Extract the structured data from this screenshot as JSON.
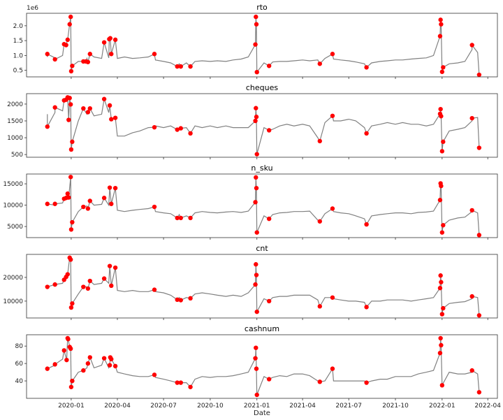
{
  "chart_data": {
    "type": "line",
    "xlabel": "Date",
    "x_ticks": [
      "2020-01",
      "2020-04",
      "2020-07",
      "2020-10",
      "2021-01",
      "2021-04",
      "2021-07",
      "2021-10",
      "2022-01",
      "2022-04"
    ],
    "xlim": [
      "2019-10-05",
      "2022-04-20"
    ],
    "grid": false,
    "line_color": "#808080",
    "anomaly_color": "#ff0000",
    "dates": [
      "2019-11-15",
      "2019-11-30",
      "2019-12-15",
      "2020-01-15",
      "2020-02-01",
      "2020-02-15",
      "2020-03-01",
      "2020-03-15",
      "2020-04-01",
      "2020-04-15",
      "2020-05-01",
      "2020-05-15",
      "2020-06-01",
      "2020-06-15",
      "2020-07-01",
      "2020-07-15",
      "2020-08-01",
      "2020-08-15",
      "2020-09-01",
      "2020-09-15",
      "2020-10-01",
      "2020-10-15",
      "2020-11-01",
      "2020-11-15",
      "2020-12-01",
      "2020-12-15",
      "2021-01-15",
      "2021-02-01",
      "2021-02-15",
      "2021-03-01",
      "2021-03-15",
      "2021-04-01",
      "2021-04-15",
      "2021-05-01",
      "2021-05-15",
      "2021-06-01",
      "2021-06-15",
      "2021-07-01",
      "2021-07-15",
      "2021-08-01",
      "2021-08-15",
      "2021-09-01",
      "2021-09-15",
      "2021-10-01",
      "2021-10-15",
      "2021-11-01",
      "2021-11-15",
      "2021-12-01",
      "2021-12-15",
      "2022-01-15",
      "2022-02-01",
      "2022-02-15",
      "2022-03-01",
      "2022-03-12"
    ],
    "panels": [
      {
        "title": "rto",
        "offset_label": "1e6",
        "ylim": [
          0.28,
          2.42
        ],
        "y_ticks": [
          0.5,
          1.0,
          1.5,
          2.0
        ],
        "y_tick_labels": [
          "0.5",
          "1.0",
          "1.5",
          "2.0"
        ],
        "values": [
          0.95,
          0.92,
          1.0,
          0.8,
          0.9,
          0.95,
          0.9,
          0.92,
          0.9,
          0.95,
          0.9,
          0.92,
          0.95,
          0.85,
          0.8,
          0.75,
          0.72,
          0.75,
          0.8,
          0.82,
          0.8,
          0.82,
          0.8,
          0.85,
          0.88,
          0.95,
          0.75,
          0.78,
          0.8,
          0.8,
          0.82,
          0.85,
          0.82,
          0.85,
          0.9,
          0.88,
          0.85,
          0.82,
          0.78,
          0.72,
          0.75,
          0.8,
          0.82,
          0.85,
          0.85,
          0.88,
          0.9,
          0.92,
          1.0,
          0.72,
          0.75,
          0.8,
          1.2,
          1.1
        ],
        "anomalies": [
          [
            "2019-11-15",
            1.05
          ],
          [
            "2019-11-30",
            0.87
          ],
          [
            "2019-12-18",
            1.38
          ],
          [
            "2019-12-22",
            1.35
          ],
          [
            "2019-12-25",
            1.53
          ],
          [
            "2019-12-29",
            2.05
          ],
          [
            "2019-12-31",
            2.3
          ],
          [
            "2020-01-01",
            0.47
          ],
          [
            "2020-01-03",
            0.65
          ],
          [
            "2020-01-25",
            0.8
          ],
          [
            "2020-01-30",
            0.8
          ],
          [
            "2020-02-03",
            0.78
          ],
          [
            "2020-02-07",
            1.05
          ],
          [
            "2020-03-06",
            1.44
          ],
          [
            "2020-03-16",
            1.55
          ],
          [
            "2020-03-18",
            1.58
          ],
          [
            "2020-03-20",
            1.05
          ],
          [
            "2020-03-28",
            1.53
          ],
          [
            "2020-06-13",
            1.05
          ],
          [
            "2020-07-28",
            0.63
          ],
          [
            "2020-08-04",
            0.63
          ],
          [
            "2020-08-23",
            0.63
          ],
          [
            "2020-12-29",
            1.37
          ],
          [
            "2020-12-30",
            2.3
          ],
          [
            "2020-12-31",
            2.05
          ],
          [
            "2021-01-01",
            0.44
          ],
          [
            "2021-01-25",
            0.65
          ],
          [
            "2021-05-05",
            0.72
          ],
          [
            "2021-05-30",
            1.05
          ],
          [
            "2021-08-05",
            0.6
          ],
          [
            "2021-12-28",
            1.65
          ],
          [
            "2021-12-29",
            2.2
          ],
          [
            "2021-12-30",
            2.05
          ],
          [
            "2022-01-01",
            0.45
          ],
          [
            "2022-01-03",
            0.6
          ],
          [
            "2022-03-01",
            1.35
          ],
          [
            "2022-03-15",
            0.35
          ]
        ]
      },
      {
        "title": "cheques",
        "offset_label": "",
        "ylim": [
          420,
          2310
        ],
        "y_ticks": [
          500,
          1000,
          1500,
          2000
        ],
        "y_tick_labels": [
          "500",
          "1000",
          "1500",
          "2000"
        ],
        "values": [
          1700,
          1750,
          1800,
          1500,
          1700,
          1650,
          1700,
          1750,
          1050,
          1050,
          1150,
          1200,
          1300,
          1350,
          1300,
          1350,
          1250,
          1300,
          1350,
          1300,
          1350,
          1300,
          1350,
          1300,
          1300,
          1300,
          1300,
          1250,
          1350,
          1400,
          1350,
          1400,
          1350,
          1000,
          1450,
          1500,
          1500,
          1550,
          1500,
          1300,
          1350,
          1400,
          1450,
          1400,
          1450,
          1400,
          1400,
          1350,
          1400,
          1200,
          1250,
          1300,
          1500,
          1600
        ],
        "anomalies": [
          [
            "2019-11-15",
            1330
          ],
          [
            "2019-11-30",
            1900
          ],
          [
            "2019-12-18",
            2110
          ],
          [
            "2019-12-22",
            2130
          ],
          [
            "2019-12-25",
            2200
          ],
          [
            "2019-12-27",
            1530
          ],
          [
            "2019-12-29",
            2180
          ],
          [
            "2019-12-31",
            1990
          ],
          [
            "2020-01-01",
            650
          ],
          [
            "2020-01-03",
            880
          ],
          [
            "2020-01-25",
            1870
          ],
          [
            "2020-02-03",
            1760
          ],
          [
            "2020-02-07",
            1870
          ],
          [
            "2020-03-06",
            2150
          ],
          [
            "2020-03-17",
            1960
          ],
          [
            "2020-03-20",
            1550
          ],
          [
            "2020-03-28",
            1590
          ],
          [
            "2020-06-13",
            1310
          ],
          [
            "2020-07-28",
            1240
          ],
          [
            "2020-08-04",
            1280
          ],
          [
            "2020-08-23",
            1130
          ],
          [
            "2020-12-29",
            1500
          ],
          [
            "2020-12-30",
            1880
          ],
          [
            "2020-12-31",
            1620
          ],
          [
            "2021-01-01",
            510
          ],
          [
            "2021-01-25",
            1220
          ],
          [
            "2021-05-05",
            900
          ],
          [
            "2021-05-30",
            1650
          ],
          [
            "2021-08-05",
            1130
          ],
          [
            "2021-12-28",
            1710
          ],
          [
            "2021-12-29",
            1850
          ],
          [
            "2021-12-30",
            1640
          ],
          [
            "2022-01-01",
            600
          ],
          [
            "2022-01-03",
            880
          ],
          [
            "2022-03-01",
            1580
          ],
          [
            "2022-03-15",
            700
          ]
        ]
      },
      {
        "title": "n_sku",
        "offset_label": "",
        "ylim": [
          2400,
          17300
        ],
        "y_ticks": [
          5000,
          10000,
          15000
        ],
        "y_tick_labels": [
          "5000",
          "10000",
          "15000"
        ],
        "values": [
          10000,
          10000,
          10500,
          8500,
          9800,
          10000,
          10200,
          10000,
          8800,
          8500,
          8800,
          9000,
          9200,
          8500,
          8200,
          8000,
          7800,
          7500,
          8200,
          8500,
          8300,
          8200,
          8400,
          8500,
          8300,
          8600,
          7500,
          7800,
          8200,
          8300,
          8500,
          8500,
          8600,
          6500,
          8000,
          8500,
          8200,
          8000,
          7500,
          6800,
          7500,
          7800,
          8000,
          8200,
          8200,
          8000,
          8300,
          8400,
          8600,
          6500,
          7000,
          7200,
          8500,
          8200
        ],
        "anomalies": [
          [
            "2019-11-15",
            10300
          ],
          [
            "2019-11-30",
            10300
          ],
          [
            "2019-12-18",
            11500
          ],
          [
            "2019-12-22",
            11700
          ],
          [
            "2019-12-25",
            12700
          ],
          [
            "2019-12-27",
            11800
          ],
          [
            "2019-12-31",
            16600
          ],
          [
            "2020-01-01",
            4300
          ],
          [
            "2020-01-03",
            6000
          ],
          [
            "2020-01-25",
            9600
          ],
          [
            "2020-02-03",
            9200
          ],
          [
            "2020-02-07",
            11000
          ],
          [
            "2020-03-06",
            11700
          ],
          [
            "2020-03-17",
            14100
          ],
          [
            "2020-03-20",
            10300
          ],
          [
            "2020-03-28",
            14000
          ],
          [
            "2020-06-13",
            9600
          ],
          [
            "2020-07-28",
            7000
          ],
          [
            "2020-08-04",
            7000
          ],
          [
            "2020-08-23",
            7000
          ],
          [
            "2020-12-29",
            10700
          ],
          [
            "2020-12-30",
            16500
          ],
          [
            "2020-12-31",
            14000
          ],
          [
            "2021-01-01",
            3600
          ],
          [
            "2021-01-25",
            6800
          ],
          [
            "2021-05-05",
            6200
          ],
          [
            "2021-05-30",
            9200
          ],
          [
            "2021-08-05",
            5500
          ],
          [
            "2021-12-28",
            11200
          ],
          [
            "2021-12-29",
            15100
          ],
          [
            "2021-12-30",
            14500
          ],
          [
            "2022-01-01",
            3600
          ],
          [
            "2022-01-03",
            5300
          ],
          [
            "2022-03-01",
            8800
          ],
          [
            "2022-03-15",
            3000
          ]
        ]
      },
      {
        "title": "cnt",
        "offset_label": "",
        "ylim": [
          2900,
          29700
        ],
        "y_ticks": [
          10000,
          20000
        ],
        "y_tick_labels": [
          "10000",
          "20000"
        ],
        "values": [
          16500,
          17000,
          17500,
          13000,
          16000,
          17000,
          17500,
          17500,
          14500,
          14000,
          14500,
          14000,
          14000,
          14000,
          13500,
          12500,
          11500,
          11500,
          13000,
          13500,
          13000,
          12500,
          12000,
          12500,
          12000,
          13500,
          11000,
          11500,
          12000,
          12000,
          12500,
          12500,
          12500,
          10500,
          11500,
          11000,
          10500,
          10000,
          10000,
          9500,
          10000,
          10000,
          10500,
          10500,
          10500,
          10000,
          10500,
          11000,
          11500,
          9000,
          9500,
          9800,
          11000,
          11500
        ],
        "anomalies": [
          [
            "2019-11-15",
            16000
          ],
          [
            "2019-11-30",
            17000
          ],
          [
            "2019-12-18",
            19000
          ],
          [
            "2019-12-22",
            20200
          ],
          [
            "2019-12-25",
            21300
          ],
          [
            "2019-12-29",
            28300
          ],
          [
            "2019-12-31",
            27500
          ],
          [
            "2020-01-01",
            7300
          ],
          [
            "2020-01-03",
            9000
          ],
          [
            "2020-01-25",
            16000
          ],
          [
            "2020-02-03",
            15300
          ],
          [
            "2020-02-07",
            18500
          ],
          [
            "2020-03-06",
            19500
          ],
          [
            "2020-03-17",
            24800
          ],
          [
            "2020-03-20",
            16500
          ],
          [
            "2020-03-28",
            24100
          ],
          [
            "2020-06-13",
            14800
          ],
          [
            "2020-07-28",
            10600
          ],
          [
            "2020-08-04",
            10400
          ],
          [
            "2020-08-23",
            11200
          ],
          [
            "2020-12-29",
            17000
          ],
          [
            "2020-12-30",
            25500
          ],
          [
            "2020-12-31",
            21000
          ],
          [
            "2021-01-01",
            5500
          ],
          [
            "2021-01-25",
            10000
          ],
          [
            "2021-05-05",
            7800
          ],
          [
            "2021-05-30",
            11500
          ],
          [
            "2021-08-05",
            7500
          ],
          [
            "2021-12-28",
            15500
          ],
          [
            "2021-12-29",
            20800
          ],
          [
            "2021-12-30",
            18000
          ],
          [
            "2022-01-01",
            4500
          ],
          [
            "2022-01-03",
            7000
          ],
          [
            "2022-03-01",
            12000
          ],
          [
            "2022-03-15",
            4000
          ]
        ]
      },
      {
        "title": "cashnum",
        "offset_label": "",
        "ylim": [
          20,
          93
        ],
        "y_ticks": [
          40,
          60,
          80
        ],
        "y_tick_labels": [
          "40",
          "60",
          "80"
        ],
        "values": [
          55,
          58,
          65,
          50,
          55,
          55,
          58,
          55,
          50,
          48,
          46,
          45,
          45,
          44,
          42,
          40,
          38,
          38,
          42,
          45,
          44,
          45,
          45,
          46,
          48,
          50,
          45,
          44,
          46,
          45,
          48,
          48,
          46,
          40,
          40,
          40,
          40,
          40,
          40,
          40,
          40,
          42,
          42,
          45,
          45,
          45,
          48,
          50,
          52,
          50,
          48,
          48,
          50,
          48
        ],
        "anomalies": [
          [
            "2019-11-15",
            54
          ],
          [
            "2019-11-30",
            59
          ],
          [
            "2019-12-18",
            75
          ],
          [
            "2019-12-23",
            64
          ],
          [
            "2019-12-25",
            89
          ],
          [
            "2019-12-26",
            88
          ],
          [
            "2019-12-29",
            79
          ],
          [
            "2019-12-31",
            77
          ],
          [
            "2020-01-01",
            33
          ],
          [
            "2020-01-03",
            40
          ],
          [
            "2020-01-25",
            52
          ],
          [
            "2020-02-03",
            60
          ],
          [
            "2020-02-07",
            67
          ],
          [
            "2020-03-06",
            66
          ],
          [
            "2020-03-17",
            58
          ],
          [
            "2020-03-18",
            67
          ],
          [
            "2020-03-20",
            65
          ],
          [
            "2020-03-28",
            57
          ],
          [
            "2020-06-13",
            47
          ],
          [
            "2020-07-28",
            38
          ],
          [
            "2020-08-04",
            38
          ],
          [
            "2020-08-23",
            33
          ],
          [
            "2020-12-29",
            66
          ],
          [
            "2020-12-30",
            78
          ],
          [
            "2020-12-31",
            54
          ],
          [
            "2021-01-01",
            24
          ],
          [
            "2021-01-25",
            42
          ],
          [
            "2021-05-05",
            39
          ],
          [
            "2021-05-30",
            54
          ],
          [
            "2021-08-05",
            38
          ],
          [
            "2021-12-28",
            72
          ],
          [
            "2021-12-29",
            89
          ],
          [
            "2021-12-30",
            81
          ],
          [
            "2022-01-01",
            35
          ],
          [
            "2022-03-01",
            52
          ],
          [
            "2022-03-15",
            27
          ]
        ]
      }
    ]
  }
}
